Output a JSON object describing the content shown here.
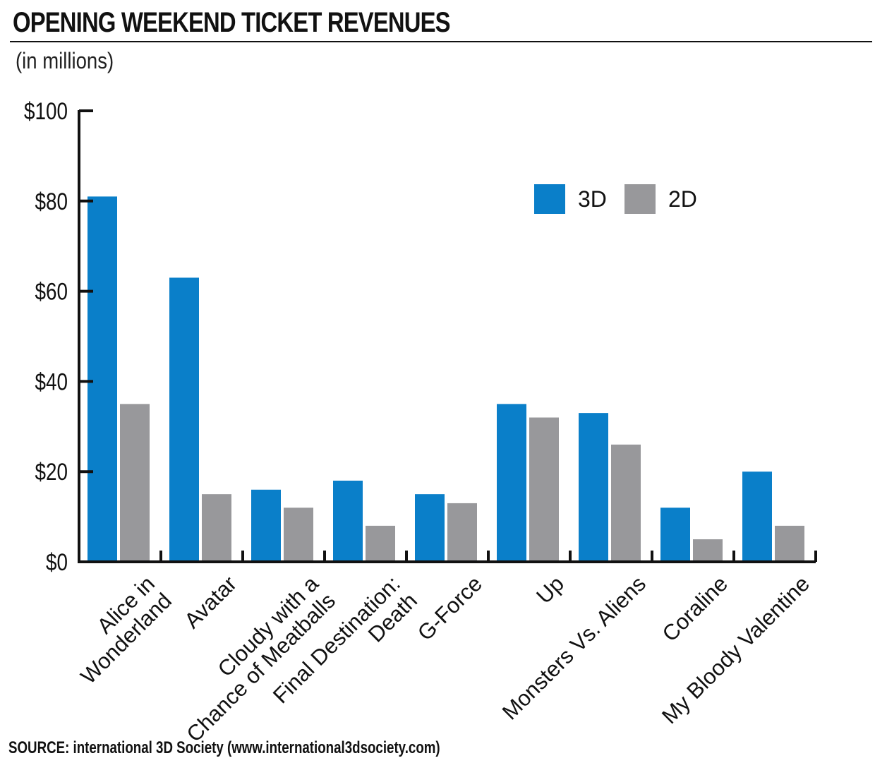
{
  "header": {
    "title": "OPENING WEEKEND TICKET REVENUES",
    "subtitle": "(in millions)"
  },
  "footer": {
    "source": "SOURCE:  international 3D Society (www.international3dsociety.com)"
  },
  "colors": {
    "series_3d": "#0a7fc9",
    "series_2d": "#98989b",
    "axis": "#111111"
  },
  "chart_data": {
    "type": "bar",
    "title": "OPENING WEEKEND TICKET REVENUES",
    "subtitle": "(in millions)",
    "xlabel": "",
    "ylabel": "",
    "ylim": [
      0,
      100
    ],
    "yticks": [
      0,
      20,
      40,
      60,
      80,
      100
    ],
    "ytick_labels": [
      "$0",
      "$20",
      "$40",
      "$60",
      "$80",
      "$100"
    ],
    "categories": [
      [
        "Alice in",
        "Wonderland"
      ],
      [
        "Avatar"
      ],
      [
        "Cloudy with a",
        "Chance of Meatballs"
      ],
      [
        "Final Destination:",
        "Death"
      ],
      [
        "G-Force"
      ],
      [
        "Up"
      ],
      [
        "Monsters Vs. Aliens"
      ],
      [
        "Coraline"
      ],
      [
        "My Bloody Valentine"
      ]
    ],
    "series": [
      {
        "name": "3D",
        "values": [
          81,
          63,
          16,
          18,
          15,
          35,
          33,
          12,
          20
        ]
      },
      {
        "name": "2D",
        "values": [
          35,
          15,
          12,
          8,
          13,
          32,
          26,
          5,
          8
        ]
      }
    ],
    "legend": "top-right",
    "grid": false
  }
}
